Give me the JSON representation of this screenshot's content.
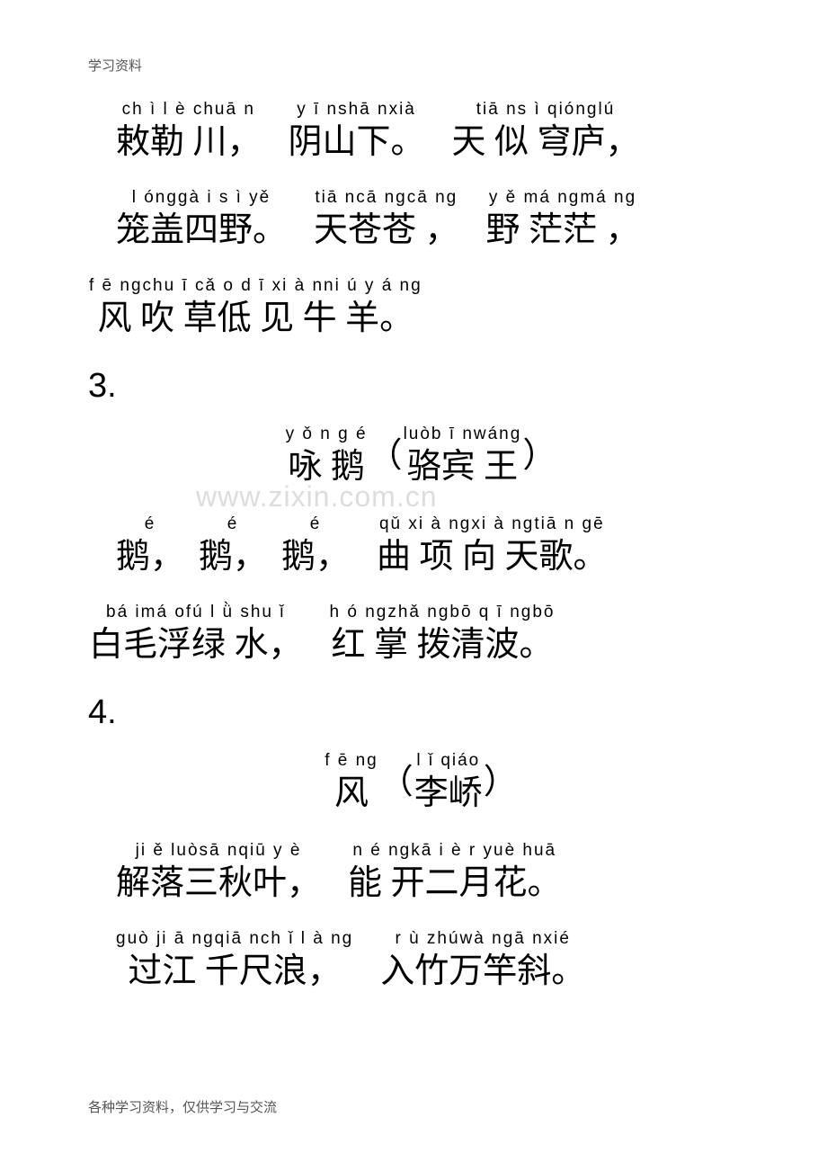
{
  "header": "学习资料",
  "footer": "各种学习资料，仅供学习与交流",
  "watermark": "www.zixin.com.cn",
  "section3": "3.",
  "section4": "4.",
  "poem2": {
    "line1": {
      "p1": {
        "pinyin": "ch ì  l è chuā n",
        "hanzi": "敕勒 川，"
      },
      "p2": {
        "pinyin": "y ī nshā nxià",
        "hanzi": "阴山下。"
      },
      "p3": {
        "pinyin": "tiā ns ì  qiónglú",
        "hanzi": "天 似 穹庐，"
      }
    },
    "line2": {
      "p1": {
        "pinyin": "l ónggà i s ì yě",
        "hanzi": "笼盖四野。"
      },
      "p2": {
        "pinyin": "tiā ncā ngcā ng",
        "hanzi": "天苍苍 ，"
      },
      "p3": {
        "pinyin": "y ě má ngmá ng",
        "hanzi": "野 茫茫 ，"
      }
    },
    "line3": {
      "p1": {
        "pinyin": "f ē ngchu ī cǎ o d ī  xi à nni ú y á ng",
        "hanzi": "风 吹 草低 见 牛 羊。"
      }
    }
  },
  "poem3": {
    "title": {
      "p1": {
        "pinyin": "y ǒ n g   é",
        "hanzi": "咏  鹅"
      },
      "p2": {
        "pinyin": "luòb ī nwáng",
        "hanzi": "骆宾 王"
      }
    },
    "line1": {
      "p1": {
        "pinyin": "é",
        "hanzi": "鹅，"
      },
      "p2": {
        "pinyin": "é",
        "hanzi": "鹅，"
      },
      "p3": {
        "pinyin": "é",
        "hanzi": "鹅，"
      },
      "p4": {
        "pinyin": "qǔ xi à ngxi à ngtiā n gē",
        "hanzi": "曲 项  向  天歌。"
      }
    },
    "line2": {
      "p1": {
        "pinyin": "bá imá ofú  l ǜ shu ǐ",
        "hanzi": "白毛浮绿 水，"
      },
      "p2": {
        "pinyin": "h ó ngzhǎ ngbō q ī ngbō",
        "hanzi": "红 掌 拨清波。"
      }
    }
  },
  "poem4": {
    "title": {
      "p1": {
        "pinyin": "f ē ng",
        "hanzi": "风"
      },
      "p2": {
        "pinyin": "l ǐ qiáo",
        "hanzi": "李峤"
      }
    },
    "line1": {
      "p1": {
        "pinyin": "ji ě luòsā nqiū y è",
        "hanzi": "解落三秋叶，"
      },
      "p2": {
        "pinyin": "n é ngkā i  è r yuè huā",
        "hanzi": "能 开二月花。"
      }
    },
    "line2": {
      "p1": {
        "pinyin": "guò ji ā ngqiā nch ǐ l à ng",
        "hanzi": "过江 千尺浪，"
      },
      "p2": {
        "pinyin": "r ù zhúwà ngā nxié",
        "hanzi": "入竹万竿斜。"
      }
    }
  }
}
